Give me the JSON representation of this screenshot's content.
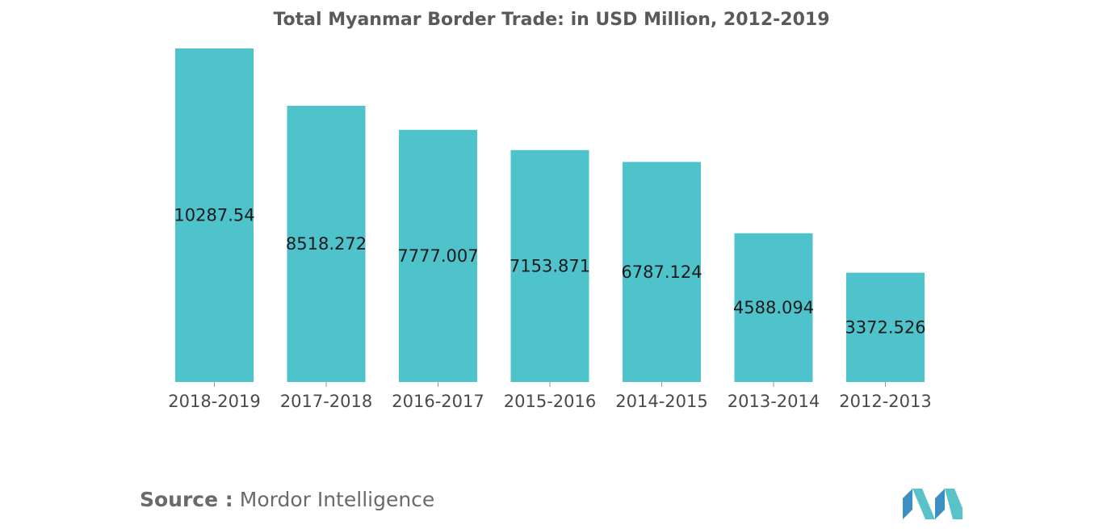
{
  "chart_data": {
    "type": "bar",
    "title": "Total Myanmar Border Trade: in USD Million, 2012-2019",
    "categories": [
      "2018-2019",
      "2017-2018",
      "2016-2017",
      "2015-2016",
      "2014-2015",
      "2013-2014",
      "2012-2013"
    ],
    "values": [
      10287.54,
      8518.272,
      7777.007,
      7153.871,
      6787.124,
      4588.094,
      3372.526
    ],
    "data_labels": [
      "10287.54",
      "8518.272",
      "7777.007",
      "7153.871",
      "6787.124",
      "4588.094",
      "3372.526"
    ],
    "xlabel": "",
    "ylabel": "",
    "ylim": [
      0,
      10287.54
    ],
    "grid": false,
    "bar_color": "#4fc3cb"
  },
  "source": {
    "label": "Source :",
    "text": "Mordor Intelligence"
  },
  "logo": {
    "icon": "mordor-intelligence-logo",
    "colors": [
      "#3b8fc2",
      "#59c3c9"
    ]
  }
}
